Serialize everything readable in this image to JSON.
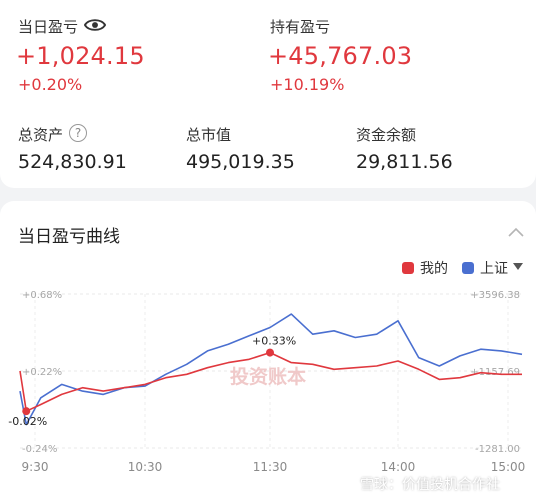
{
  "summary": {
    "today_pl_label": "当日盈亏",
    "today_pl_value": "+1,024.15",
    "today_pl_pct": "+0.20%",
    "holding_pl_label": "持有盈亏",
    "holding_pl_value": "+45,767.03",
    "holding_pl_pct": "+10.19%",
    "total_assets_label": "总资产",
    "total_assets_value": "524,830.91",
    "market_value_label": "总市值",
    "market_value_value": "495,019.35",
    "cash_label": "资金余额",
    "cash_value": "29,811.56",
    "help_glyph": "?"
  },
  "chart_section": {
    "title": "当日盈亏曲线",
    "legend_mine": "我的",
    "legend_index": "上证",
    "colors": {
      "mine": "#e0383e",
      "index": "#4a6fd0"
    },
    "watermark": "投资账本"
  },
  "chart_data": {
    "type": "line",
    "x_ticks": [
      "9:30",
      "10:30",
      "11:30",
      "14:00",
      "15:00"
    ],
    "left_axis_labels": [
      "+0.68%",
      "+0.22%",
      "-0.24%"
    ],
    "right_axis_labels": [
      "+3596.38",
      "+1157.69",
      "-1281.00"
    ],
    "ylim_left_pct": [
      -0.24,
      0.68
    ],
    "ylim_right": [
      -1281.0,
      3596.38
    ],
    "annotations": [
      {
        "text": "+0.33%",
        "series": "我的",
        "x": "11:30",
        "value": 0.33
      },
      {
        "text": "-0.02%",
        "series": "我的",
        "x": "9:33",
        "value": -0.02
      }
    ],
    "series": [
      {
        "name": "我的",
        "color": "#e0383e",
        "times": [
          "9:30",
          "9:33",
          "9:40",
          "9:50",
          "10:00",
          "10:10",
          "10:20",
          "10:30",
          "10:40",
          "10:50",
          "11:00",
          "11:10",
          "11:20",
          "11:30",
          "13:10",
          "13:20",
          "13:30",
          "13:40",
          "13:50",
          "14:00",
          "14:10",
          "14:20",
          "14:30",
          "14:40",
          "14:50",
          "15:00"
        ],
        "values": [
          0.22,
          -0.02,
          0.02,
          0.08,
          0.12,
          0.1,
          0.12,
          0.14,
          0.18,
          0.2,
          0.24,
          0.27,
          0.29,
          0.33,
          0.27,
          0.26,
          0.23,
          0.24,
          0.25,
          0.28,
          0.23,
          0.17,
          0.18,
          0.21,
          0.2,
          0.2
        ]
      },
      {
        "name": "上证",
        "color": "#4a6fd0",
        "times": [
          "9:30",
          "9:33",
          "9:40",
          "9:50",
          "10:00",
          "10:10",
          "10:20",
          "10:30",
          "10:40",
          "10:50",
          "11:00",
          "11:10",
          "11:20",
          "11:30",
          "13:10",
          "13:20",
          "13:30",
          "13:40",
          "13:50",
          "14:00",
          "14:10",
          "14:20",
          "14:30",
          "14:40",
          "14:50",
          "15:00"
        ],
        "values": [
          0.1,
          -0.1,
          0.06,
          0.14,
          0.1,
          0.08,
          0.12,
          0.13,
          0.2,
          0.26,
          0.34,
          0.38,
          0.43,
          0.48,
          0.56,
          0.44,
          0.46,
          0.42,
          0.44,
          0.52,
          0.3,
          0.25,
          0.31,
          0.35,
          0.34,
          0.32
        ]
      }
    ]
  }
}
